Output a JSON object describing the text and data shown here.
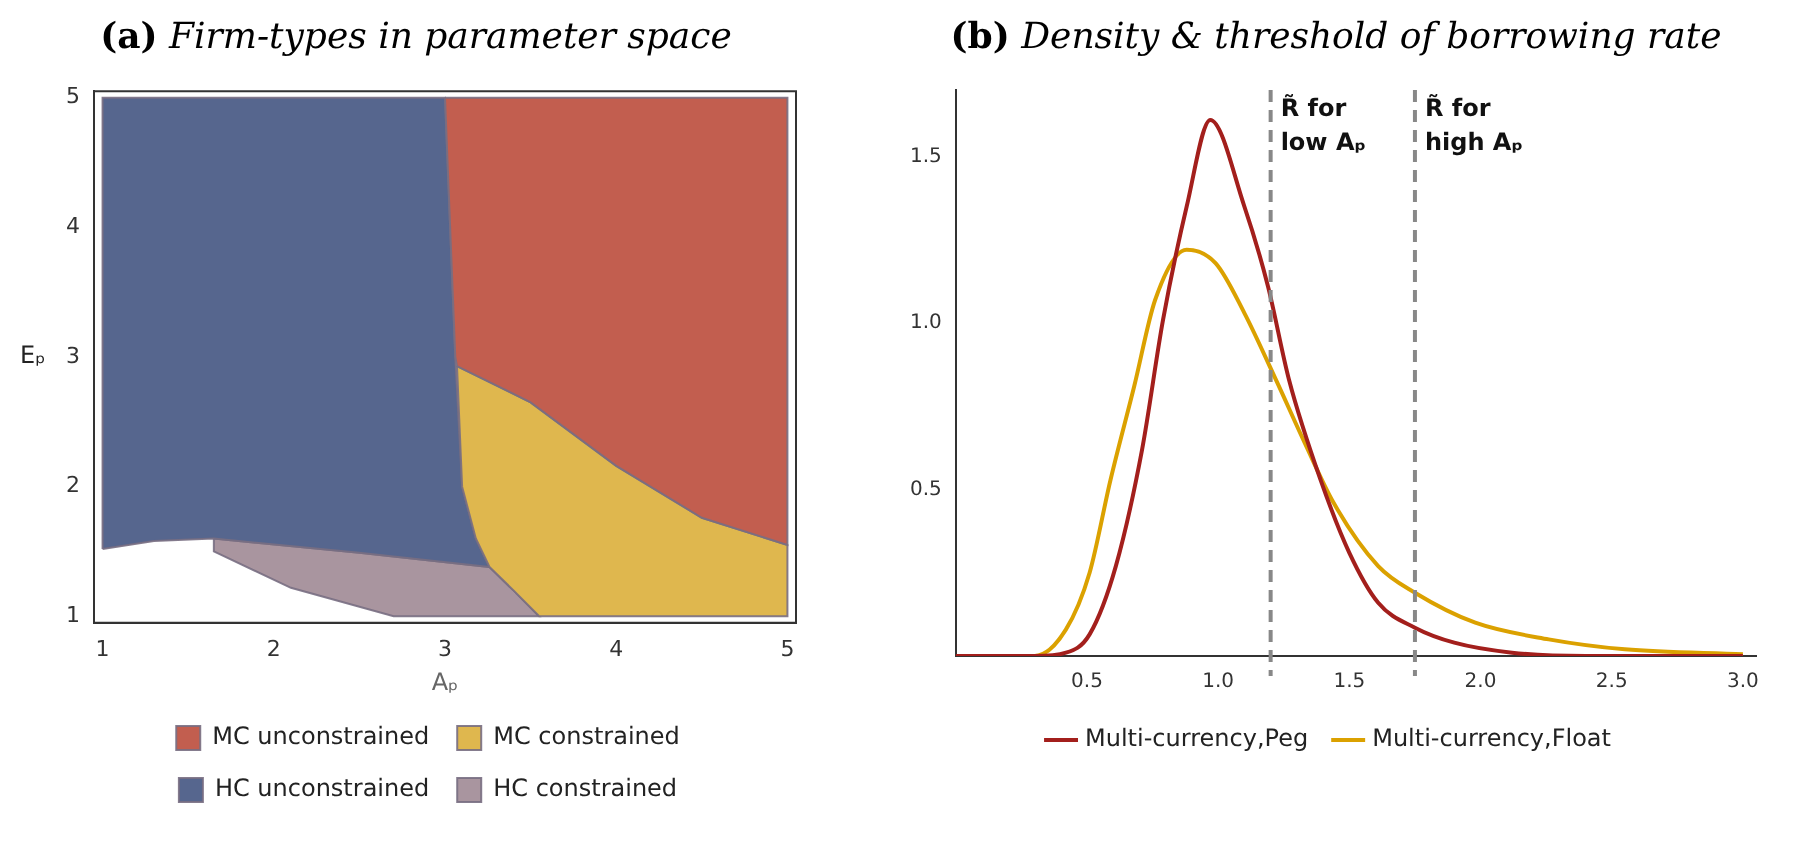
{
  "chart_data": [
    {
      "type": "area",
      "title": "(a) Firm-types in parameter space",
      "xlabel": "Aₚ",
      "ylabel": "Eₚ",
      "xlim": [
        0.95,
        5.05
      ],
      "ylim": [
        0.95,
        5.05
      ],
      "xticks": [
        1,
        2,
        3,
        4,
        5
      ],
      "yticks": [
        1,
        2,
        3,
        4,
        5
      ],
      "grid": false,
      "legend": "bottom",
      "series": [
        {
          "name": "MC unconstrained",
          "color": "#c25e4f",
          "x": [
            3.0,
            5,
            5,
            4.5,
            4,
            3.5,
            3.07,
            3.06,
            3.03,
            3.0
          ],
          "values": [
            5,
            5,
            1.55,
            1.76,
            2.16,
            2.65,
            2.93,
            3,
            4,
            5
          ]
        },
        {
          "name": "MC constrained",
          "color": "#dfb74e",
          "x": [
            3.07,
            3.5,
            4,
            4.5,
            5,
            5,
            3.55,
            3.4,
            3.26,
            3.18,
            3.1,
            3.07
          ],
          "values": [
            2.93,
            2.65,
            2.16,
            1.76,
            1.55,
            1,
            1,
            1.2,
            1.38,
            1.6,
            2,
            2.93
          ]
        },
        {
          "name": "HC unconstrained",
          "color": "#56668e",
          "x": [
            1,
            1,
            3.0,
            3.03,
            3.06,
            3.1,
            3.18,
            3.26,
            2.5,
            1.65,
            1.3,
            1
          ],
          "values": [
            1.52,
            5,
            5,
            4,
            3,
            2,
            1.6,
            1.38,
            1.49,
            1.6,
            1.58,
            1.52
          ]
        },
        {
          "name": "HC constrained",
          "color": "#a9959f",
          "x": [
            1.65,
            2.5,
            3.26,
            3.4,
            3.55,
            2.7,
            2.1,
            1.65,
            1.65
          ],
          "values": [
            1.6,
            1.49,
            1.38,
            1.2,
            1.0,
            1.0,
            1.22,
            1.5,
            1.6
          ]
        }
      ]
    },
    {
      "type": "line",
      "title": "(b) Density & threshold of borrowing rate",
      "xlim": [
        0,
        3.05
      ],
      "ylim": [
        0,
        1.7
      ],
      "xticks": [
        0.5,
        {
          "value": 1,
          "label": "1.0"
        },
        1.5,
        {
          "value": 2,
          "label": "2.0"
        },
        2.5,
        {
          "value": 3,
          "label": "3.0"
        }
      ],
      "yticks": [
        0.5,
        {
          "value": 1,
          "label": "1.0"
        },
        1.5
      ],
      "grid": false,
      "legend": "bottom",
      "line_style": "solid",
      "marker": "none",
      "ref_lines": [
        {
          "axis": "x",
          "value": 1.2,
          "label": "R̃ for\nlow Aₚ",
          "color": "#888888",
          "line_style": "dashed"
        },
        {
          "axis": "x",
          "value": 1.75,
          "label": "R̃ for\nhigh Aₚ",
          "color": "#888888",
          "line_style": "dashed"
        }
      ],
      "series": [
        {
          "name": "Multi-currency,Peg",
          "color": "#a31f1c",
          "x": [
            0,
            0.3,
            0.42,
            0.51,
            0.61,
            0.71,
            0.79,
            0.88,
            0.97,
            1.1,
            1.19,
            1.27,
            1.39,
            1.5,
            1.61,
            1.75,
            1.9,
            2.12,
            2.4,
            3.0
          ],
          "values": [
            0,
            0,
            0.01,
            0.065,
            0.27,
            0.62,
            1.01,
            1.35,
            1.61,
            1.35,
            1.11,
            0.83,
            0.53,
            0.31,
            0.16,
            0.085,
            0.04,
            0.01,
            0,
            0
          ]
        },
        {
          "name": "Multi-currency,Float",
          "color": "#dba100",
          "x": [
            0,
            0.3,
            0.42,
            0.51,
            0.59,
            0.68,
            0.76,
            0.88,
            0.99,
            1.1,
            1.22,
            1.33,
            1.44,
            1.61,
            1.75,
            1.98,
            2.26,
            2.55,
            3.0
          ],
          "values": [
            0,
            0,
            0.08,
            0.25,
            0.53,
            0.81,
            1.07,
            1.22,
            1.18,
            1.03,
            0.83,
            0.64,
            0.46,
            0.27,
            0.19,
            0.1,
            0.05,
            0.02,
            0.005
          ]
        }
      ]
    }
  ]
}
